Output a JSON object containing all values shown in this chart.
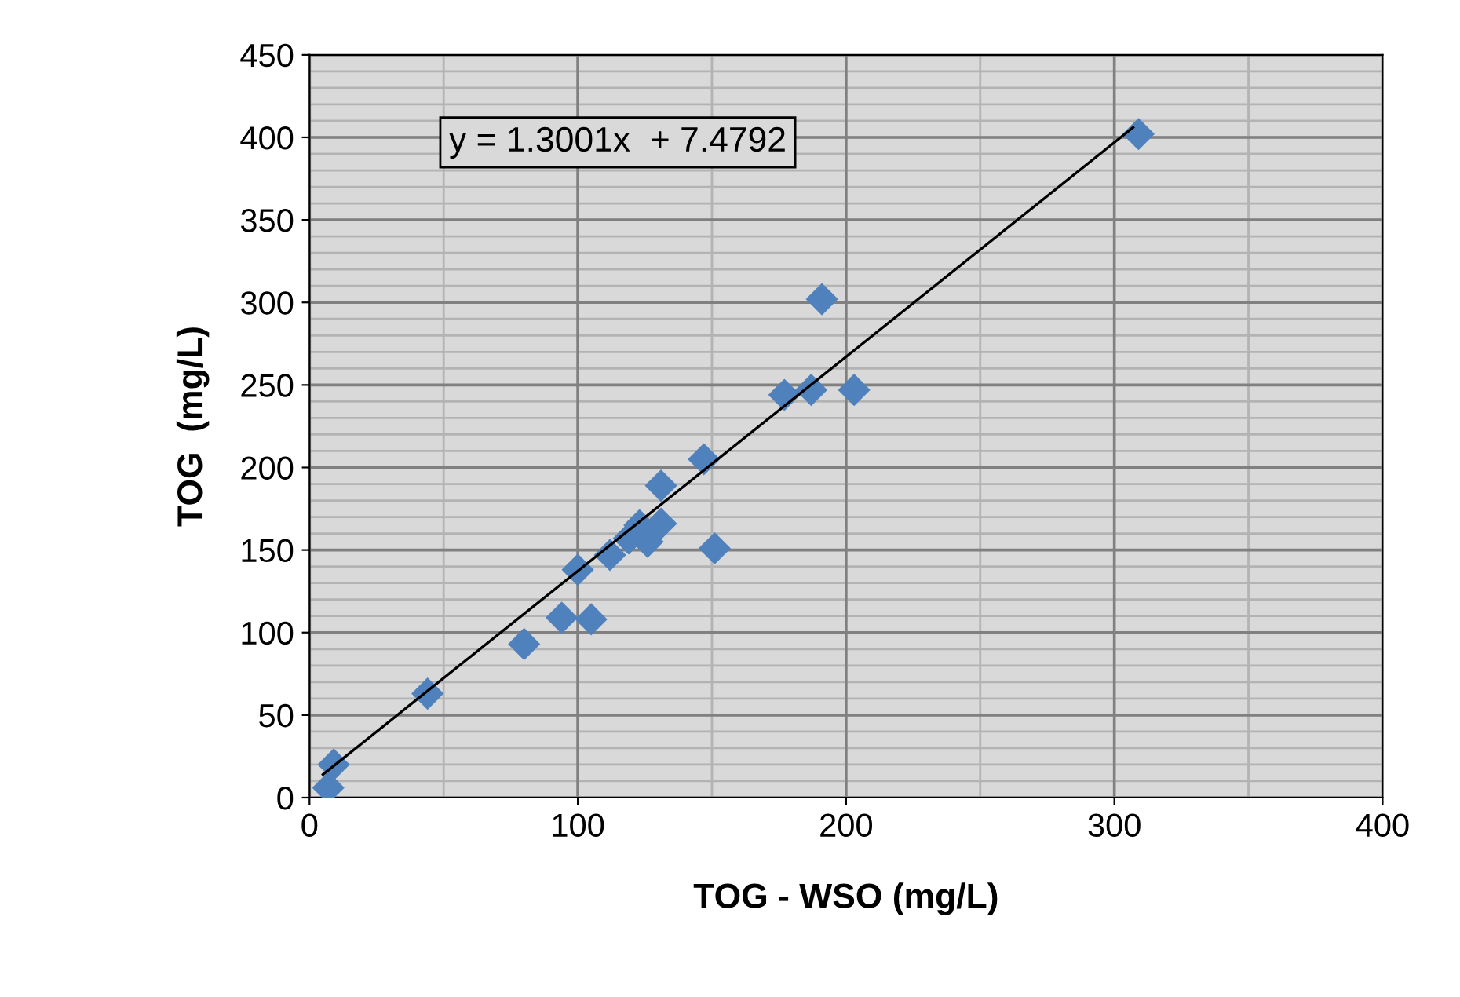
{
  "chart_data": {
    "type": "scatter",
    "xlabel": "TOG - WSO (mg/L)",
    "ylabel": "TOG  (mg/L)",
    "annotations": [
      "y = 1.3001x  + 7.4792"
    ],
    "xlim": [
      0,
      400
    ],
    "xticks": [
      0,
      100,
      200,
      300,
      400
    ],
    "ylim": [
      0,
      450
    ],
    "yticks": [
      0,
      50,
      100,
      150,
      200,
      250,
      300,
      350,
      400,
      450
    ],
    "grid": true,
    "legend": false,
    "marker": "diamond",
    "series": [
      {
        "color": "#4f81bd",
        "x": [
          7,
          9,
          44,
          80,
          94,
          105,
          100,
          112,
          119,
          123,
          131,
          131,
          126,
          147,
          151,
          177,
          187,
          203,
          191,
          309
        ],
        "values": [
          6,
          20,
          63,
          93,
          109,
          108,
          138,
          147,
          157,
          165,
          166,
          189,
          155,
          205,
          151,
          244,
          247,
          247,
          302,
          402
        ]
      },
      {
        "type": "line",
        "color": "#000000",
        "marker": "none",
        "x": [
          5,
          307
        ],
        "values": [
          14,
          406
        ]
      }
    ]
  }
}
